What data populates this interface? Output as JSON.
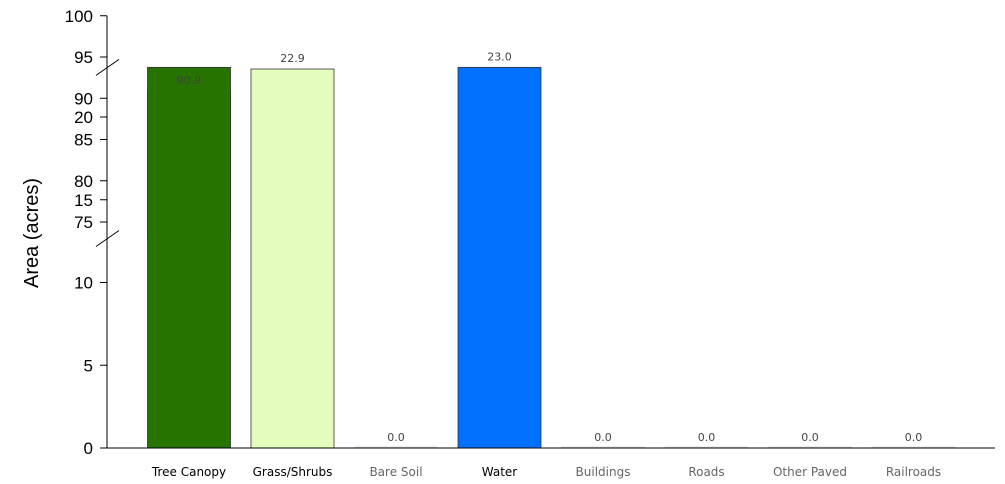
{
  "chart_data": {
    "type": "bar",
    "ylabel": "Area (acres)",
    "xlabel": "",
    "categories": [
      "Tree Canopy",
      "Grass/Shrubs",
      "Bare Soil",
      "Water",
      "Buildings",
      "Roads",
      "Other Paved",
      "Railroads"
    ],
    "values": [
      90.9,
      22.9,
      0.0,
      23.0,
      0.0,
      0.0,
      0.0,
      0.0
    ],
    "data_labels": [
      "90.9",
      "22.9",
      "0.0",
      "23.0",
      "0.0",
      "0.0",
      "0.0",
      "0.0"
    ],
    "colors": [
      "#267300",
      "#e5fdbc",
      "#ffffff",
      "#0070ff",
      "#ffffff",
      "#ffffff",
      "#ffffff",
      "#ffffff"
    ],
    "category_label_colors": [
      "#000000",
      "#000000",
      "#666666",
      "#000000",
      "#666666",
      "#666666",
      "#666666",
      "#666666"
    ],
    "axis_break": {
      "lower_range": [
        0,
        23
      ],
      "upper_range": [
        73,
        100
      ]
    },
    "yticks_lower": [
      "0",
      "5",
      "10",
      "15",
      "20"
    ],
    "yticks_upper": [
      "75",
      "80",
      "85",
      "90",
      "95",
      "100"
    ],
    "ylim": [
      0,
      100
    ],
    "grid": false,
    "legend": "none"
  }
}
